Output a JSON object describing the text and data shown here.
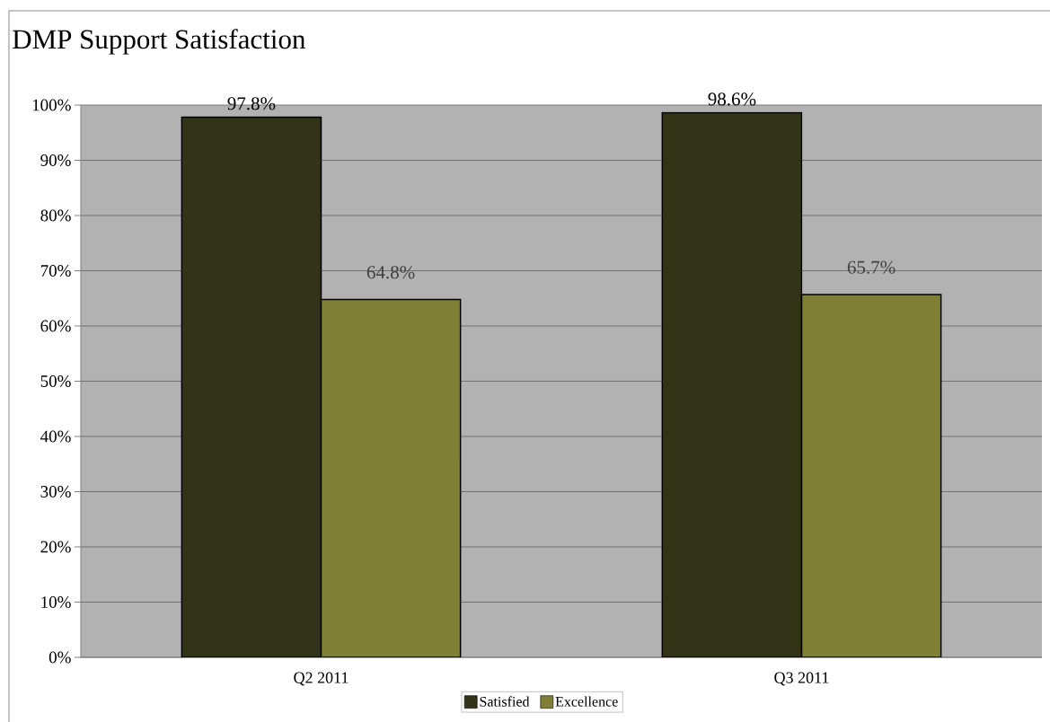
{
  "chart_data": {
    "type": "bar",
    "title": "DMP Support Satisfaction",
    "categories": [
      "Q2 2011",
      "Q3 2011"
    ],
    "series": [
      {
        "name": "Satisfied",
        "color": "#333318",
        "values": [
          97.8,
          98.6
        ],
        "value_labels": [
          "97.8%",
          "98.6%"
        ]
      },
      {
        "name": "Excellence",
        "color": "#7f7f35",
        "values": [
          64.8,
          65.7
        ],
        "value_labels": [
          "64.8%",
          "65.7%"
        ]
      }
    ],
    "ylim": [
      0,
      100
    ],
    "yticks": [
      {
        "value": 0,
        "label": "0%"
      },
      {
        "value": 10,
        "label": "10%"
      },
      {
        "value": 20,
        "label": "20%"
      },
      {
        "value": 30,
        "label": "30%"
      },
      {
        "value": 40,
        "label": "40%"
      },
      {
        "value": 50,
        "label": "50%"
      },
      {
        "value": 60,
        "label": "60%"
      },
      {
        "value": 70,
        "label": "70%"
      },
      {
        "value": 80,
        "label": "80%"
      },
      {
        "value": 90,
        "label": "90%"
      },
      {
        "value": 100,
        "label": "100%"
      }
    ],
    "grid": "y",
    "legend": "bottom"
  }
}
